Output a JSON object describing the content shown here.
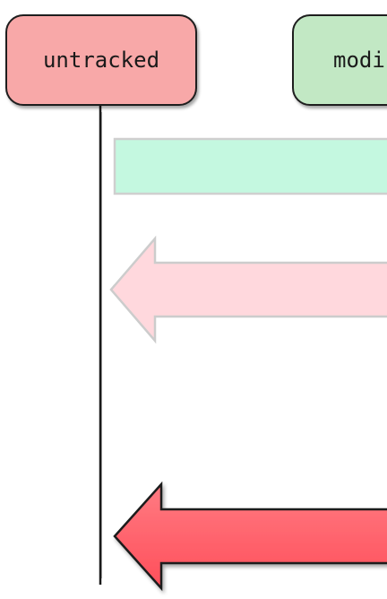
{
  "states": [
    {
      "label": "untracked",
      "fill": "#f8a8a8"
    },
    {
      "label": "modified",
      "fill": "#c2e8c4"
    }
  ],
  "bars": [
    {
      "kind": "rectangle",
      "fill": "#c4f8e0",
      "style": "faded"
    },
    {
      "kind": "left-arrow",
      "fill": "#ffd8dd",
      "style": "faded"
    },
    {
      "kind": "left-arrow",
      "fill": "#ff5a64",
      "style": "solid"
    }
  ]
}
